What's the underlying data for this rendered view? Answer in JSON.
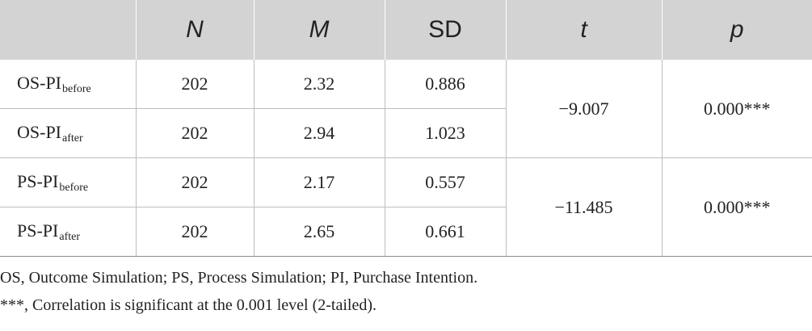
{
  "table": {
    "headers": [
      "",
      "N",
      "M",
      "SD",
      "t",
      "p"
    ],
    "rows": [
      {
        "label_main": "OS-PI",
        "label_sub": "before",
        "N": "202",
        "M": "2.32",
        "SD": "0.886"
      },
      {
        "label_main": "OS-PI",
        "label_sub": "after",
        "N": "202",
        "M": "2.94",
        "SD": "1.023"
      },
      {
        "label_main": "PS-PI",
        "label_sub": "before",
        "N": "202",
        "M": "2.17",
        "SD": "0.557"
      },
      {
        "label_main": "PS-PI",
        "label_sub": "after",
        "N": "202",
        "M": "2.65",
        "SD": "0.661"
      }
    ],
    "groups": [
      {
        "t": "−9.007",
        "p": "0.000***"
      },
      {
        "t": "−11.485",
        "p": "0.000***"
      }
    ]
  },
  "notes": [
    "OS, Outcome Simulation; PS, Process Simulation; PI, Purchase Intention.",
    "***, Correlation is significant at the 0.001 level (2-tailed)."
  ],
  "colors": {
    "header_bg": "#d3d3d3",
    "grid": "#bdbdbd",
    "text": "#222222"
  }
}
